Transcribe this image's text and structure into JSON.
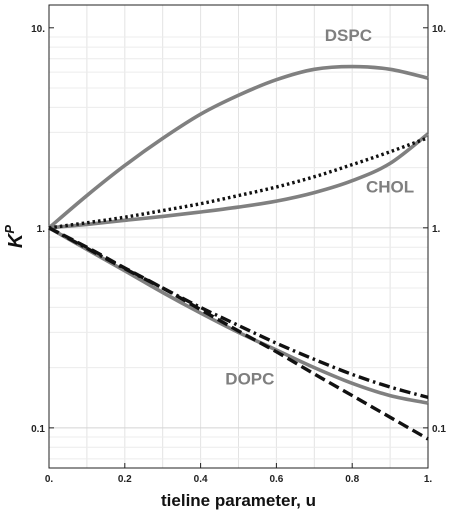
{
  "chart_data": {
    "type": "line",
    "title": "",
    "xlabel": "tieline parameter, u",
    "ylabel": "K",
    "ylabel_superscript": "P",
    "xlim": [
      0,
      1
    ],
    "ylim": [
      0.063,
      13
    ],
    "yscale": "log",
    "grid": true,
    "x_ticks": [
      0,
      0.2,
      0.4,
      0.6,
      0.8,
      1
    ],
    "x_tick_labels": [
      "0.",
      "0.2",
      "0.4",
      "0.6",
      "0.8",
      "1."
    ],
    "y_ticks": [
      0.1,
      1,
      10
    ],
    "y_tick_labels": [
      "0.1",
      "1.",
      "10."
    ],
    "series": [
      {
        "name": "DSPC",
        "color": "#808080",
        "dash": "solid",
        "x": [
          0,
          0.1,
          0.2,
          0.3,
          0.4,
          0.5,
          0.6,
          0.7,
          0.8,
          0.9,
          1.0
        ],
        "y": [
          1.0,
          1.45,
          2.05,
          2.8,
          3.7,
          4.6,
          5.5,
          6.2,
          6.4,
          6.2,
          5.6
        ]
      },
      {
        "name": "CHOL",
        "color": "#808080",
        "dash": "solid",
        "x": [
          0,
          0.1,
          0.2,
          0.3,
          0.4,
          0.5,
          0.6,
          0.7,
          0.8,
          0.9,
          1.0
        ],
        "y": [
          1.0,
          1.04,
          1.09,
          1.14,
          1.2,
          1.27,
          1.36,
          1.5,
          1.72,
          2.1,
          2.95
        ]
      },
      {
        "name": "",
        "color": "#111111",
        "dash": "dotted",
        "x": [
          0,
          0.1,
          0.2,
          0.3,
          0.4,
          0.5,
          0.6,
          0.7,
          0.8,
          0.9,
          1.0
        ],
        "y": [
          1.0,
          1.06,
          1.13,
          1.22,
          1.32,
          1.45,
          1.6,
          1.8,
          2.07,
          2.4,
          2.82
        ]
      },
      {
        "name": "DOPC",
        "color": "#808080",
        "dash": "solid",
        "x": [
          0,
          0.1,
          0.2,
          0.3,
          0.4,
          0.5,
          0.6,
          0.7,
          0.8,
          0.9,
          1.0
        ],
        "y": [
          1.0,
          0.78,
          0.61,
          0.475,
          0.375,
          0.3,
          0.245,
          0.2,
          0.167,
          0.145,
          0.133
        ]
      },
      {
        "name": "",
        "color": "#111111",
        "dash": "dashdot",
        "x": [
          0,
          0.1,
          0.2,
          0.3,
          0.4,
          0.5,
          0.6,
          0.7,
          0.8,
          0.9,
          1.0
        ],
        "y": [
          1.0,
          0.79,
          0.625,
          0.5,
          0.4,
          0.325,
          0.265,
          0.22,
          0.185,
          0.16,
          0.142
        ]
      },
      {
        "name": "",
        "color": "#111111",
        "dash": "dashed",
        "x": [
          0,
          0.1,
          0.2,
          0.3,
          0.4,
          0.5,
          0.6,
          0.7,
          0.8,
          0.9,
          1.0
        ],
        "y": [
          1.0,
          0.8,
          0.63,
          0.5,
          0.39,
          0.305,
          0.24,
          0.186,
          0.145,
          0.113,
          0.088
        ]
      }
    ],
    "annotations": [
      {
        "text": "DSPC",
        "x": 0.79,
        "y": 8.6
      },
      {
        "text": "CHOL",
        "x": 0.9,
        "y": 1.5
      },
      {
        "text": "DOPC",
        "x": 0.53,
        "y": 0.165
      }
    ]
  }
}
